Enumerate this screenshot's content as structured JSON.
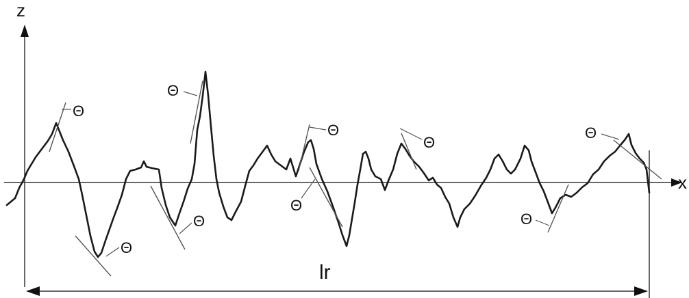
{
  "axes": {
    "z_label": "z",
    "x_label": "x"
  },
  "length": {
    "label": "lr"
  },
  "angle_label": "Θ",
  "colors": {
    "line": "#1a1a1a",
    "axis": "#333333",
    "background": "#ffffff"
  }
}
